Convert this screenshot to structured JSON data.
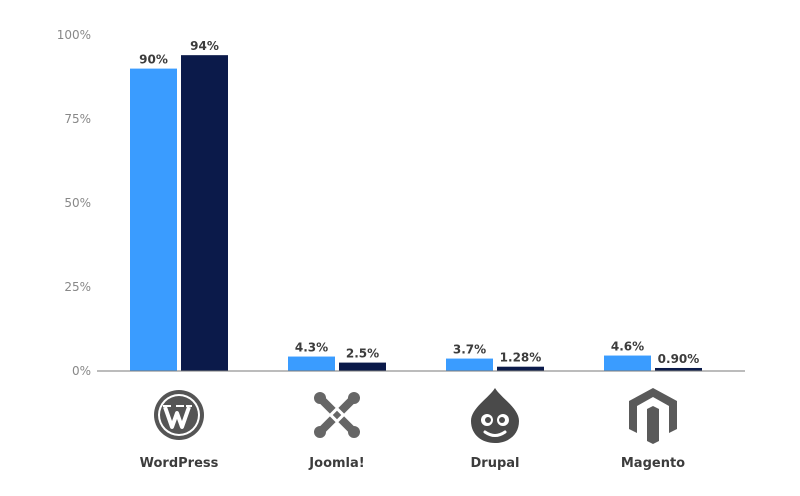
{
  "chart_data": {
    "type": "bar",
    "categories": [
      "WordPress",
      "Joomla!",
      "Drupal",
      "Magento"
    ],
    "category_icons": [
      "wordpress-logo-icon",
      "joomla-logo-icon",
      "drupal-logo-icon",
      "magento-logo-icon"
    ],
    "series": [
      {
        "values": [
          90,
          4.3,
          3.7,
          4.6
        ],
        "labels": [
          "90%",
          "4.3%",
          "3.7%",
          "4.6%"
        ],
        "color": "#3a9cff"
      },
      {
        "values": [
          94,
          2.5,
          1.28,
          0.9
        ],
        "labels": [
          "94%",
          "2.5%",
          "1.28%",
          "0.90%"
        ],
        "color": "#0b1a4a"
      }
    ],
    "yticks": [
      "0%",
      "25%",
      "50%",
      "75%",
      "100%"
    ],
    "ylim": [
      0,
      100
    ],
    "grid": false,
    "title": "",
    "xlabel": "",
    "ylabel": ""
  }
}
